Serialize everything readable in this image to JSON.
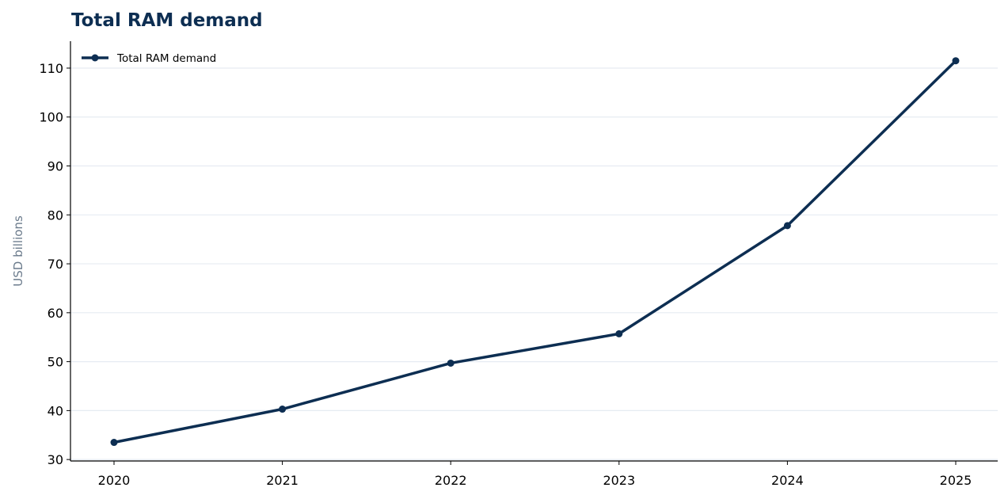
{
  "chart_data": {
    "type": "line",
    "title": "Total RAM demand",
    "xlabel": "",
    "ylabel": "USD billions",
    "x": [
      "2020",
      "2021",
      "2022",
      "2023",
      "2024",
      "2025"
    ],
    "series": [
      {
        "name": "Total RAM demand",
        "values": [
          33.5,
          40.3,
          49.7,
          55.7,
          77.8,
          111.5
        ]
      }
    ],
    "ylim": [
      29.7,
      115.5
    ],
    "yticks": [
      30,
      40,
      50,
      60,
      70,
      80,
      90,
      100,
      110
    ],
    "grid": "horizontal",
    "legend_position": "top-left"
  },
  "colors": {
    "title": "#0d2e52",
    "line": "#0d2e52",
    "ylabel": "#6b7b8c",
    "grid": "#e6ebf2",
    "axis": "#000000"
  }
}
